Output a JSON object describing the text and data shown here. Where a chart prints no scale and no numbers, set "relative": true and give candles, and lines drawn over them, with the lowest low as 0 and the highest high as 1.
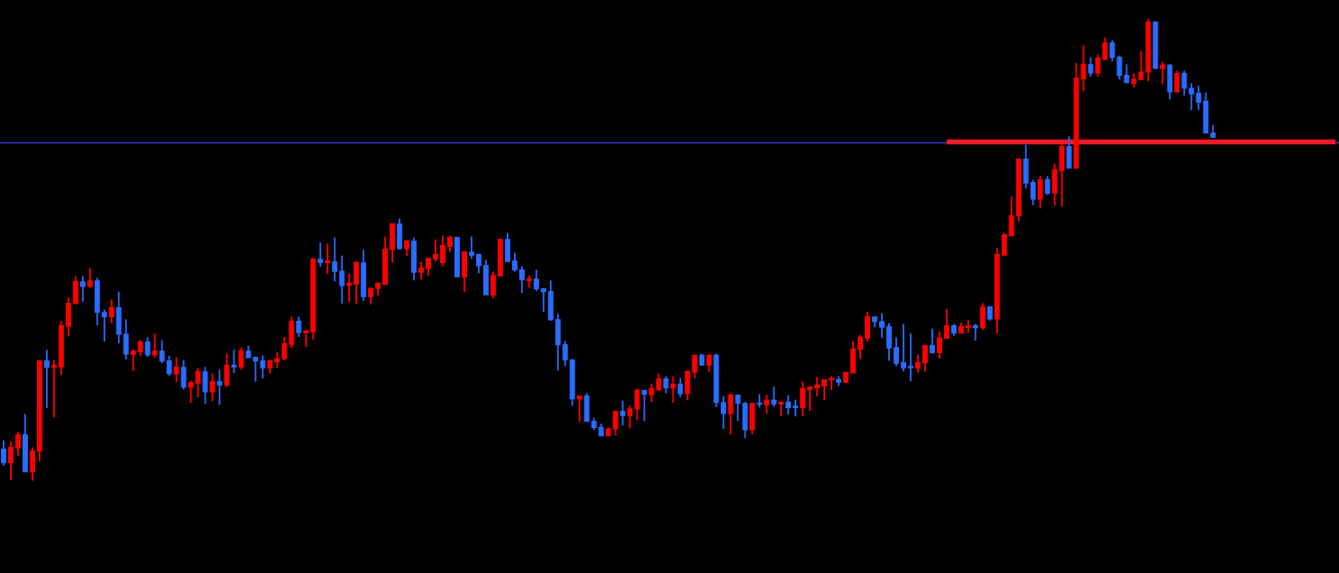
{
  "chart_data": {
    "type": "candlestick",
    "relative": true,
    "tick_labels": false,
    "categories": [
      null,
      null,
      null,
      null,
      null,
      null,
      null,
      null,
      null,
      null,
      null,
      null,
      null,
      null,
      null,
      null,
      null,
      null,
      null,
      null,
      null,
      null,
      null,
      null,
      null,
      null,
      null,
      null,
      null,
      null,
      null,
      null,
      null,
      null,
      null,
      null,
      null,
      null,
      null,
      null,
      null,
      null,
      null,
      null,
      null,
      null,
      null,
      null,
      null,
      null,
      null,
      null,
      null,
      null,
      null,
      null,
      null,
      null,
      null,
      null,
      null,
      null,
      null,
      null,
      null,
      null,
      null,
      null,
      null,
      null,
      null,
      null,
      null,
      null,
      null,
      null,
      null,
      null,
      null,
      null,
      null,
      null,
      null,
      null,
      null,
      null,
      null,
      null,
      null,
      null,
      null,
      null,
      null,
      null,
      null,
      null,
      null,
      null,
      null,
      null,
      null,
      null,
      null,
      null,
      null,
      null,
      null,
      null,
      null,
      null,
      null,
      null,
      null,
      null,
      null,
      null,
      null,
      null,
      null,
      null,
      null,
      null,
      null,
      null,
      null,
      null,
      null,
      null,
      null,
      null,
      null,
      null,
      null,
      null,
      null,
      null,
      null,
      null,
      null,
      null,
      null,
      null,
      null,
      null,
      null,
      null,
      null,
      null,
      null,
      null,
      null,
      null,
      null,
      null,
      null,
      null,
      null,
      null,
      null,
      null,
      null,
      null,
      null,
      null,
      null,
      null,
      null,
      null,
      null,
      null,
      null,
      null,
      null,
      null,
      null,
      null,
      null,
      null,
      null,
      null,
      null,
      null,
      null,
      null,
      null,
      null
    ],
    "ohlc": [
      [
        0.068,
        0.087,
        0.032,
        0.039
      ],
      [
        0.039,
        0.084,
        0.001,
        0.072
      ],
      [
        0.071,
        0.105,
        0.053,
        0.099
      ],
      [
        0.099,
        0.144,
        0.019,
        0.019
      ],
      [
        0.019,
        0.072,
        0.0,
        0.064
      ],
      [
        0.064,
        0.259,
        0.042,
        0.259
      ],
      [
        0.259,
        0.283,
        0.157,
        0.245
      ],
      [
        0.245,
        0.261,
        0.137,
        0.249
      ],
      [
        0.246,
        0.345,
        0.229,
        0.335
      ],
      [
        0.334,
        0.396,
        0.312,
        0.384
      ],
      [
        0.383,
        0.442,
        0.383,
        0.431
      ],
      [
        0.43,
        0.442,
        0.387,
        0.42
      ],
      [
        0.42,
        0.46,
        0.417,
        0.432
      ],
      [
        0.432,
        0.439,
        0.336,
        0.364
      ],
      [
        0.364,
        0.37,
        0.301,
        0.355
      ],
      [
        0.355,
        0.392,
        0.34,
        0.374
      ],
      [
        0.374,
        0.409,
        0.297,
        0.317
      ],
      [
        0.317,
        0.349,
        0.262,
        0.274
      ],
      [
        0.273,
        0.284,
        0.237,
        0.28
      ],
      [
        0.279,
        0.304,
        0.269,
        0.3
      ],
      [
        0.3,
        0.31,
        0.268,
        0.272
      ],
      [
        0.272,
        0.318,
        0.266,
        0.28
      ],
      [
        0.28,
        0.304,
        0.254,
        0.259
      ],
      [
        0.259,
        0.27,
        0.227,
        0.231
      ],
      [
        0.231,
        0.267,
        0.213,
        0.246
      ],
      [
        0.245,
        0.261,
        0.197,
        0.202
      ],
      [
        0.202,
        0.216,
        0.168,
        0.212
      ],
      [
        0.211,
        0.244,
        0.18,
        0.236
      ],
      [
        0.235,
        0.246,
        0.166,
        0.192
      ],
      [
        0.192,
        0.232,
        0.172,
        0.214
      ],
      [
        0.214,
        0.24,
        0.164,
        0.207
      ],
      [
        0.207,
        0.275,
        0.202,
        0.25
      ],
      [
        0.25,
        0.283,
        0.233,
        0.246
      ],
      [
        0.246,
        0.288,
        0.24,
        0.281
      ],
      [
        0.28,
        0.292,
        0.266,
        0.266
      ],
      [
        0.267,
        0.268,
        0.214,
        0.259
      ],
      [
        0.259,
        0.271,
        0.221,
        0.244
      ],
      [
        0.244,
        0.261,
        0.231,
        0.259
      ],
      [
        0.257,
        0.279,
        0.244,
        0.264
      ],
      [
        0.264,
        0.311,
        0.26,
        0.296
      ],
      [
        0.295,
        0.355,
        0.287,
        0.345
      ],
      [
        0.345,
        0.355,
        0.311,
        0.32
      ],
      [
        0.32,
        0.326,
        0.289,
        0.324
      ],
      [
        0.322,
        0.481,
        0.305,
        0.48
      ],
      [
        0.479,
        0.515,
        0.463,
        0.472
      ],
      [
        0.472,
        0.513,
        0.447,
        0.474
      ],
      [
        0.473,
        0.526,
        0.431,
        0.453
      ],
      [
        0.453,
        0.487,
        0.383,
        0.422
      ],
      [
        0.422,
        0.448,
        0.386,
        0.427
      ],
      [
        0.425,
        0.475,
        0.383,
        0.472
      ],
      [
        0.471,
        0.499,
        0.389,
        0.398
      ],
      [
        0.398,
        0.418,
        0.381,
        0.416
      ],
      [
        0.416,
        0.427,
        0.4,
        0.427
      ],
      [
        0.425,
        0.528,
        0.423,
        0.501
      ],
      [
        0.5,
        0.556,
        0.472,
        0.556
      ],
      [
        0.555,
        0.567,
        0.5,
        0.502
      ],
      [
        0.502,
        0.519,
        0.486,
        0.519
      ],
      [
        0.518,
        0.526,
        0.433,
        0.451
      ],
      [
        0.451,
        0.474,
        0.435,
        0.46
      ],
      [
        0.459,
        0.481,
        0.443,
        0.481
      ],
      [
        0.48,
        0.522,
        0.474,
        0.489
      ],
      [
        0.472,
        0.53,
        0.464,
        0.508
      ],
      [
        0.507,
        0.53,
        0.494,
        0.526
      ],
      [
        0.526,
        0.526,
        0.441,
        0.441
      ],
      [
        0.441,
        0.495,
        0.408,
        0.495
      ],
      [
        0.494,
        0.528,
        0.48,
        0.488
      ],
      [
        0.489,
        0.491,
        0.449,
        0.465
      ],
      [
        0.465,
        0.478,
        0.402,
        0.402
      ],
      [
        0.402,
        0.452,
        0.394,
        0.444
      ],
      [
        0.443,
        0.524,
        0.443,
        0.522
      ],
      [
        0.522,
        0.536,
        0.474,
        0.474
      ],
      [
        0.475,
        0.493,
        0.452,
        0.456
      ],
      [
        0.456,
        0.464,
        0.406,
        0.434
      ],
      [
        0.433,
        0.444,
        0.417,
        0.437
      ],
      [
        0.436,
        0.456,
        0.41,
        0.415
      ],
      [
        0.415,
        0.417,
        0.365,
        0.409
      ],
      [
        0.409,
        0.433,
        0.346,
        0.348
      ],
      [
        0.348,
        0.361,
        0.238,
        0.294
      ],
      [
        0.294,
        0.302,
        0.248,
        0.261
      ],
      [
        0.261,
        0.263,
        0.162,
        0.177
      ],
      [
        0.177,
        0.183,
        0.127,
        0.183
      ],
      [
        0.183,
        0.189,
        0.128,
        0.128
      ],
      [
        0.128,
        0.136,
        0.11,
        0.115
      ],
      [
        0.115,
        0.123,
        0.097,
        0.097
      ],
      [
        0.097,
        0.115,
        0.097,
        0.112
      ],
      [
        0.112,
        0.15,
        0.098,
        0.15
      ],
      [
        0.15,
        0.173,
        0.119,
        0.141
      ],
      [
        0.141,
        0.162,
        0.113,
        0.155
      ],
      [
        0.155,
        0.199,
        0.131,
        0.196
      ],
      [
        0.195,
        0.196,
        0.129,
        0.187
      ],
      [
        0.186,
        0.21,
        0.17,
        0.199
      ],
      [
        0.197,
        0.232,
        0.194,
        0.22
      ],
      [
        0.22,
        0.226,
        0.189,
        0.201
      ],
      [
        0.201,
        0.226,
        0.168,
        0.209
      ],
      [
        0.209,
        0.222,
        0.18,
        0.188
      ],
      [
        0.188,
        0.238,
        0.174,
        0.236
      ],
      [
        0.235,
        0.271,
        0.221,
        0.271
      ],
      [
        0.271,
        0.275,
        0.25,
        0.25
      ],
      [
        0.25,
        0.273,
        0.235,
        0.271
      ],
      [
        0.271,
        0.275,
        0.159,
        0.169
      ],
      [
        0.169,
        0.183,
        0.112,
        0.145
      ],
      [
        0.145,
        0.189,
        0.1,
        0.185
      ],
      [
        0.185,
        0.185,
        0.129,
        0.167
      ],
      [
        0.167,
        0.17,
        0.092,
        0.11
      ],
      [
        0.11,
        0.168,
        0.1,
        0.167
      ],
      [
        0.167,
        0.187,
        0.158,
        0.165
      ],
      [
        0.164,
        0.186,
        0.145,
        0.174
      ],
      [
        0.174,
        0.203,
        0.16,
        0.166
      ],
      [
        0.166,
        0.17,
        0.139,
        0.17
      ],
      [
        0.17,
        0.185,
        0.143,
        0.158
      ],
      [
        0.159,
        0.175,
        0.139,
        0.158
      ],
      [
        0.158,
        0.214,
        0.139,
        0.199
      ],
      [
        0.197,
        0.203,
        0.151,
        0.203
      ],
      [
        0.201,
        0.224,
        0.182,
        0.207
      ],
      [
        0.205,
        0.218,
        0.174,
        0.218
      ],
      [
        0.218,
        0.226,
        0.196,
        0.219
      ],
      [
        0.218,
        0.226,
        0.205,
        0.213
      ],
      [
        0.213,
        0.234,
        0.211,
        0.234
      ],
      [
        0.233,
        0.302,
        0.233,
        0.285
      ],
      [
        0.284,
        0.315,
        0.263,
        0.31
      ],
      [
        0.308,
        0.365,
        0.3,
        0.355
      ],
      [
        0.354,
        0.354,
        0.332,
        0.344
      ],
      [
        0.344,
        0.362,
        0.309,
        0.332
      ],
      [
        0.333,
        0.341,
        0.259,
        0.287
      ],
      [
        0.288,
        0.31,
        0.248,
        0.254
      ],
      [
        0.255,
        0.339,
        0.236,
        0.244
      ],
      [
        0.247,
        0.318,
        0.215,
        0.244
      ],
      [
        0.244,
        0.273,
        0.234,
        0.255
      ],
      [
        0.255,
        0.294,
        0.236,
        0.292
      ],
      [
        0.292,
        0.329,
        0.275,
        0.277
      ],
      [
        0.277,
        0.323,
        0.264,
        0.309
      ],
      [
        0.308,
        0.372,
        0.308,
        0.335
      ],
      [
        0.335,
        0.339,
        0.313,
        0.319
      ],
      [
        0.319,
        0.342,
        0.319,
        0.333
      ],
      [
        0.332,
        0.347,
        0.32,
        0.335
      ],
      [
        0.335,
        0.339,
        0.303,
        0.331
      ],
      [
        0.331,
        0.384,
        0.326,
        0.376
      ],
      [
        0.376,
        0.378,
        0.346,
        0.35
      ],
      [
        0.35,
        0.503,
        0.318,
        0.489
      ],
      [
        0.488,
        0.536,
        0.488,
        0.532
      ],
      [
        0.53,
        0.615,
        0.529,
        0.573
      ],
      [
        0.573,
        0.696,
        0.561,
        0.696
      ],
      [
        0.696,
        0.727,
        0.632,
        0.644
      ],
      [
        0.645,
        0.651,
        0.596,
        0.609
      ],
      [
        0.609,
        0.659,
        0.589,
        0.651
      ],
      [
        0.651,
        0.659,
        0.618,
        0.622
      ],
      [
        0.622,
        0.686,
        0.595,
        0.673
      ],
      [
        0.671,
        0.729,
        0.593,
        0.723
      ],
      [
        0.723,
        0.745,
        0.676,
        0.676
      ],
      [
        0.676,
        0.904,
        0.675,
        0.871
      ],
      [
        0.87,
        0.942,
        0.843,
        0.901
      ],
      [
        0.9,
        0.916,
        0.874,
        0.882
      ],
      [
        0.882,
        0.922,
        0.874,
        0.914
      ],
      [
        0.912,
        0.959,
        0.91,
        0.947
      ],
      [
        0.947,
        0.953,
        0.907,
        0.916
      ],
      [
        0.916,
        0.92,
        0.868,
        0.877
      ],
      [
        0.877,
        0.901,
        0.861,
        0.861
      ],
      [
        0.86,
        0.881,
        0.851,
        0.869
      ],
      [
        0.868,
        0.93,
        0.868,
        0.884
      ],
      [
        0.884,
        1.0,
        0.864,
        0.992
      ],
      [
        0.992,
        0.994,
        0.892,
        0.892
      ],
      [
        0.892,
        0.906,
        0.858,
        0.899
      ],
      [
        0.899,
        0.901,
        0.825,
        0.841
      ],
      [
        0.841,
        0.887,
        0.841,
        0.881
      ],
      [
        0.881,
        0.887,
        0.833,
        0.849
      ],
      [
        0.849,
        0.86,
        0.802,
        0.837
      ],
      [
        0.838,
        0.854,
        0.802,
        0.819
      ],
      [
        0.821,
        0.84,
        0.752,
        0.752
      ],
      [
        0.752,
        0.77,
        0.743,
        0.743
      ],
      null,
      null,
      null,
      null,
      null,
      null,
      null,
      null,
      null,
      null,
      null,
      null,
      null,
      null,
      null,
      null,
      null
    ],
    "colors": [
      "#2a6cff",
      "#ff0000",
      "#ff0000",
      "#2a6cff",
      "#ff0000",
      "#ff0000",
      "#2a6cff",
      "#ff0000",
      "#ff0000",
      "#ff0000",
      "#ff0000",
      "#2a6cff",
      "#ff0000",
      "#2a6cff",
      "#2a6cff",
      "#ff0000",
      "#2a6cff",
      "#2a6cff",
      "#ff0000",
      "#ff0000",
      "#2a6cff",
      "#ff0000",
      "#2a6cff",
      "#2a6cff",
      "#ff0000",
      "#2a6cff",
      "#ff0000",
      "#ff0000",
      "#2a6cff",
      "#ff0000",
      "#2a6cff",
      "#ff0000",
      "#2a6cff",
      "#ff0000",
      "#2a6cff",
      "#2a6cff",
      "#2a6cff",
      "#ff0000",
      "#ff0000",
      "#ff0000",
      "#ff0000",
      "#2a6cff",
      "#ff0000",
      "#ff0000",
      "#2a6cff",
      "#ff0000",
      "#2a6cff",
      "#2a6cff",
      "#ff0000",
      "#ff0000",
      "#2a6cff",
      "#ff0000",
      "#ff0000",
      "#ff0000",
      "#ff0000",
      "#2a6cff",
      "#ff0000",
      "#2a6cff",
      "#ff0000",
      "#ff0000",
      "#ff0000",
      "#ff0000",
      "#ff0000",
      "#2a6cff",
      "#ff0000",
      "#2a6cff",
      "#2a6cff",
      "#2a6cff",
      "#ff0000",
      "#ff0000",
      "#2a6cff",
      "#2a6cff",
      "#2a6cff",
      "#ff0000",
      "#2a6cff",
      "#2a6cff",
      "#2a6cff",
      "#2a6cff",
      "#2a6cff",
      "#2a6cff",
      "#ff0000",
      "#2a6cff",
      "#2a6cff",
      "#2a6cff",
      "#ff0000",
      "#ff0000",
      "#2a6cff",
      "#ff0000",
      "#ff0000",
      "#2a6cff",
      "#ff0000",
      "#ff0000",
      "#2a6cff",
      "#ff0000",
      "#2a6cff",
      "#ff0000",
      "#ff0000",
      "#2a6cff",
      "#ff0000",
      "#2a6cff",
      "#2a6cff",
      "#ff0000",
      "#2a6cff",
      "#2a6cff",
      "#ff0000",
      "#2a6cff",
      "#ff0000",
      "#2a6cff",
      "#ff0000",
      "#2a6cff",
      "#2a6cff",
      "#ff0000",
      "#ff0000",
      "#ff0000",
      "#ff0000",
      "#ff0000",
      "#2a6cff",
      "#ff0000",
      "#ff0000",
      "#ff0000",
      "#ff0000",
      "#2a6cff",
      "#2a6cff",
      "#2a6cff",
      "#2a6cff",
      "#2a6cff",
      "#2a6cff",
      "#ff0000",
      "#ff0000",
      "#2a6cff",
      "#ff0000",
      "#ff0000",
      "#2a6cff",
      "#ff0000",
      "#ff0000",
      "#2a6cff",
      "#ff0000",
      "#2a6cff",
      "#ff0000",
      "#ff0000",
      "#ff0000",
      "#ff0000",
      "#2a6cff",
      "#2a6cff",
      "#ff0000",
      "#2a6cff",
      "#ff0000",
      "#ff0000",
      "#2a6cff",
      "#ff0000",
      "#ff0000",
      "#2a6cff",
      "#ff0000",
      "#ff0000",
      "#2a6cff",
      "#2a6cff",
      "#2a6cff",
      "#ff0000",
      "#ff0000",
      "#ff0000",
      "#2a6cff",
      "#ff0000",
      "#2a6cff",
      "#ff0000",
      "#2a6cff",
      "#2a6cff",
      "#2a6cff",
      "#2a6cff",
      "#2a6cff",
      null,
      null,
      null,
      null,
      null,
      null,
      null,
      null,
      null,
      null,
      null,
      null,
      null,
      null,
      null,
      null,
      null
    ],
    "ref_lines": [
      {
        "axis": "y",
        "value": 0.731,
        "color": "#3a3ad8"
      }
    ],
    "series": [
      {
        "type": "line",
        "color": "#ee1c25",
        "values": [
          null,
          null,
          null,
          null,
          null,
          null,
          null,
          null,
          null,
          null,
          null,
          null,
          null,
          null,
          null,
          null,
          null,
          null,
          null,
          null,
          null,
          null,
          null,
          null,
          null,
          null,
          null,
          null,
          null,
          null,
          null,
          null,
          null,
          null,
          null,
          null,
          null,
          null,
          null,
          null,
          null,
          null,
          null,
          null,
          null,
          null,
          null,
          null,
          null,
          null,
          null,
          null,
          null,
          null,
          null,
          null,
          null,
          null,
          null,
          null,
          null,
          null,
          null,
          null,
          null,
          null,
          null,
          null,
          null,
          null,
          null,
          null,
          null,
          null,
          null,
          null,
          null,
          null,
          null,
          null,
          null,
          null,
          null,
          null,
          null,
          null,
          null,
          null,
          null,
          null,
          null,
          null,
          null,
          null,
          null,
          null,
          null,
          null,
          null,
          null,
          null,
          null,
          null,
          null,
          null,
          null,
          null,
          null,
          null,
          null,
          null,
          null,
          null,
          null,
          null,
          null,
          null,
          null,
          null,
          null,
          null,
          null,
          null,
          null,
          null,
          null,
          null,
          null,
          null,
          null,
          null,
          0.733,
          0.733,
          0.733,
          0.733,
          0.733,
          0.733,
          0.733,
          0.733,
          0.733,
          0.733,
          0.733,
          0.733,
          0.733,
          0.733,
          0.733,
          0.733,
          0.733,
          0.733,
          0.733,
          0.733,
          0.733,
          0.733,
          0.733,
          0.733,
          0.733,
          0.733,
          0.733,
          0.733,
          0.733,
          0.733,
          0.733,
          0.733,
          0.733,
          0.733,
          0.733,
          0.733,
          0.733,
          0.733,
          0.733,
          0.733,
          0.733,
          0.733,
          0.733,
          0.733,
          0.733,
          0.733,
          0.733,
          0.733,
          0.733,
          0.733,
          0.733,
          0.733,
          0.733,
          0.733,
          0.733
        ]
      }
    ]
  }
}
